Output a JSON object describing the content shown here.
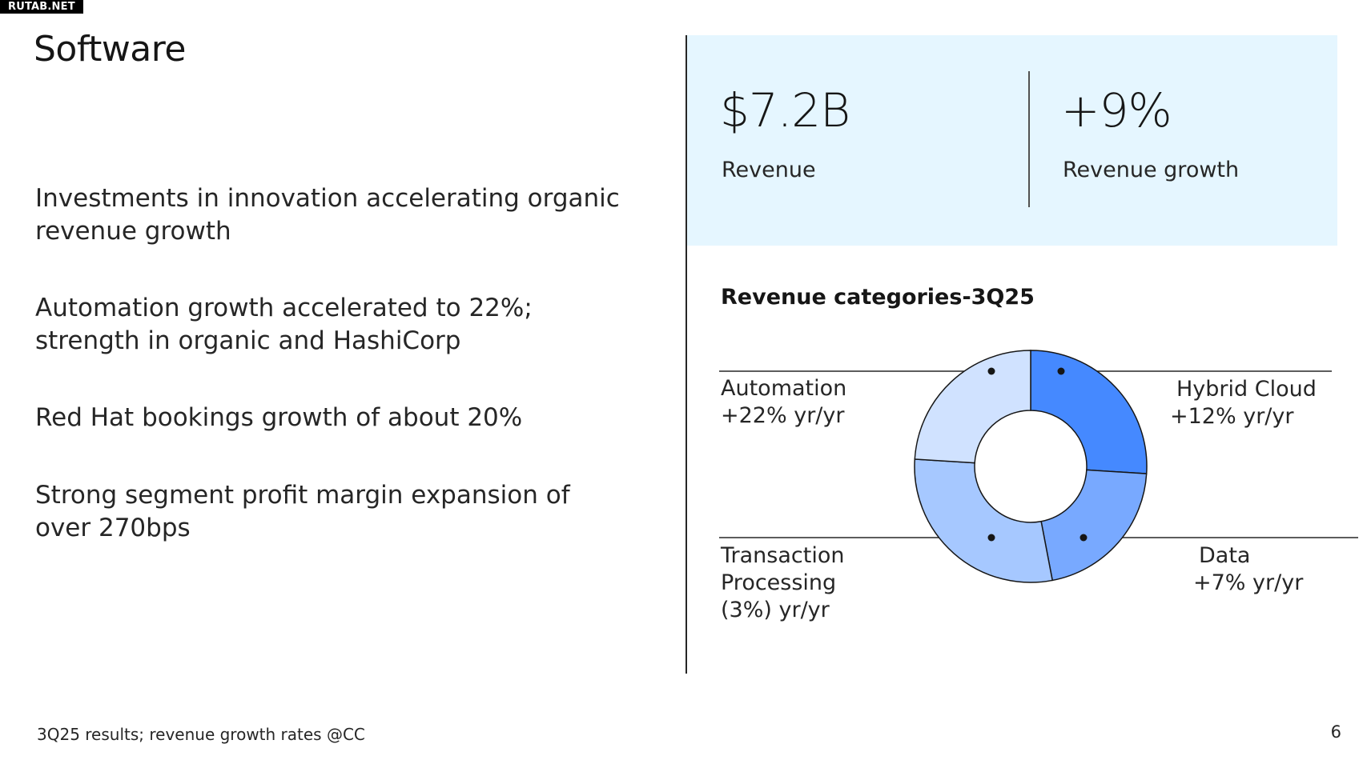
{
  "watermark": "RUTAB.NET",
  "title": "Software",
  "bullets": [
    "Investments in innovation accelerating organic revenue growth",
    "Automation growth accelerated to 22%; strength in organic and HashiCorp",
    "Red Hat bookings growth of about 20%",
    "Strong segment profit margin expansion of over 270bps"
  ],
  "kpis": {
    "revenue_value": "$7.2B",
    "revenue_label": "Revenue",
    "growth_value": "+9%",
    "growth_label": "Revenue growth"
  },
  "chart_title": "Revenue categories-3Q25",
  "chart_data": {
    "type": "pie",
    "title": "Revenue categories-3Q25",
    "categories": [
      "Hybrid Cloud",
      "Data",
      "Transaction Processing",
      "Automation"
    ],
    "values": [
      26,
      21,
      29,
      24
    ],
    "growth_labels": [
      "+12% yr/yr",
      "+7% yr/yr",
      "(3%) yr/yr",
      "+22% yr/yr"
    ],
    "colors": [
      "#4589ff",
      "#78a9ff",
      "#a6c8ff",
      "#d0e2ff"
    ],
    "donut": true
  },
  "segment_labels": {
    "hybrid_cloud_name": "Hybrid Cloud",
    "hybrid_cloud_growth": "+12% yr/yr",
    "data_name": "Data",
    "data_growth": "+7% yr/yr",
    "transaction_name_1": "Transaction",
    "transaction_name_2": "Processing",
    "transaction_growth": "(3%) yr/yr",
    "automation_name": "Automation",
    "automation_growth": "+22% yr/yr"
  },
  "footnote": "3Q25 results; revenue growth rates @CC",
  "page_number": "6"
}
